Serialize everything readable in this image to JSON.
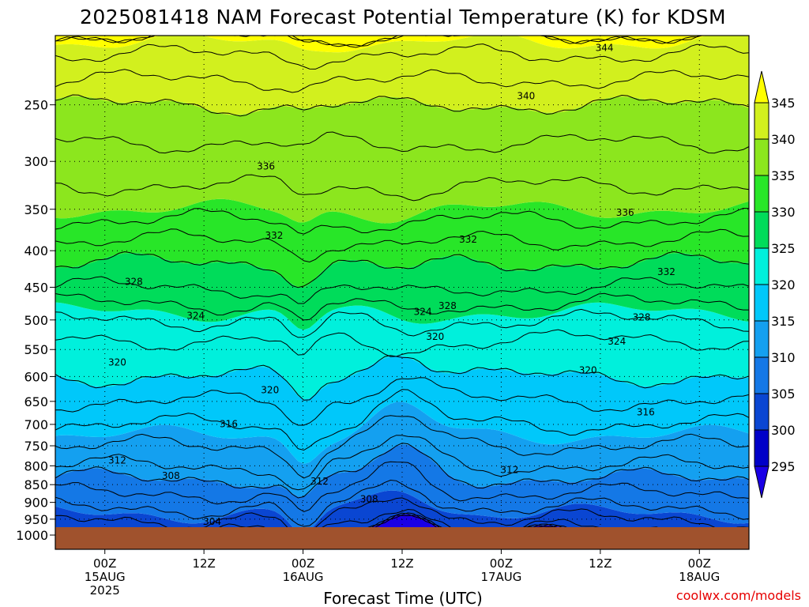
{
  "chart_data": {
    "type": "heatmap",
    "title": "2025081418 NAM Forecast Potential Temperature (K) for KDSM",
    "xlabel": "Forecast Time (UTC)",
    "ylabel": "",
    "credit": "coolwx.com/models",
    "y_scale": "log",
    "y_axis": {
      "ticks": [
        "250",
        "300",
        "350",
        "400",
        "450",
        "500",
        "550",
        "600",
        "650",
        "700",
        "750",
        "800",
        "850",
        "900",
        "950",
        "1000"
      ],
      "range": [
        200,
        1000
      ]
    },
    "x_axis": {
      "ticks": [
        {
          "hour": 6,
          "lines": [
            "00Z",
            "15AUG",
            "2025"
          ]
        },
        {
          "hour": 18,
          "lines": [
            "12Z"
          ]
        },
        {
          "hour": 30,
          "lines": [
            "00Z",
            "16AUG"
          ]
        },
        {
          "hour": 42,
          "lines": [
            "12Z"
          ]
        },
        {
          "hour": 54,
          "lines": [
            "00Z",
            "17AUG"
          ]
        },
        {
          "hour": 66,
          "lines": [
            "12Z"
          ]
        },
        {
          "hour": 78,
          "lines": [
            "00Z",
            "18AUG"
          ]
        }
      ],
      "range_hours": [
        0,
        84
      ]
    },
    "colorbar": {
      "levels": [
        "295",
        "300",
        "305",
        "310",
        "315",
        "320",
        "325",
        "330",
        "335",
        "340",
        "345"
      ],
      "colors": [
        "#1a00e6",
        "#0000c8",
        "#0a46d2",
        "#1478e6",
        "#14a0f0",
        "#00c8fa",
        "#00f0dc",
        "#00dc5a",
        "#28e628",
        "#8ce61e",
        "#d2f01e",
        "#ffff00"
      ]
    },
    "ground_color": "#a0522d",
    "contour_interval_K": 2,
    "contour_labels": [
      {
        "text": "344",
        "hour": 66.5,
        "p": 208
      },
      {
        "text": "340",
        "hour": 57,
        "p": 243
      },
      {
        "text": "336",
        "hour": 25.5,
        "p": 305
      },
      {
        "text": "336",
        "hour": 69,
        "p": 354
      },
      {
        "text": "332",
        "hour": 26.5,
        "p": 381
      },
      {
        "text": "332",
        "hour": 50,
        "p": 386
      },
      {
        "text": "332",
        "hour": 74,
        "p": 428
      },
      {
        "text": "328",
        "hour": 9.5,
        "p": 442
      },
      {
        "text": "328",
        "hour": 47.5,
        "p": 478
      },
      {
        "text": "328",
        "hour": 71,
        "p": 496
      },
      {
        "text": "324",
        "hour": 17,
        "p": 493
      },
      {
        "text": "324",
        "hour": 44.5,
        "p": 487
      },
      {
        "text": "324",
        "hour": 68,
        "p": 536
      },
      {
        "text": "320",
        "hour": 46,
        "p": 528
      },
      {
        "text": "320",
        "hour": 7.5,
        "p": 573
      },
      {
        "text": "320",
        "hour": 26,
        "p": 627
      },
      {
        "text": "320",
        "hour": 64.5,
        "p": 588
      },
      {
        "text": "316",
        "hour": 21,
        "p": 699
      },
      {
        "text": "316",
        "hour": 71.5,
        "p": 673
      },
      {
        "text": "312",
        "hour": 7.5,
        "p": 786
      },
      {
        "text": "312",
        "hour": 32,
        "p": 841
      },
      {
        "text": "312",
        "hour": 55,
        "p": 810
      },
      {
        "text": "308",
        "hour": 14,
        "p": 826
      },
      {
        "text": "308",
        "hour": 38,
        "p": 891
      },
      {
        "text": "304",
        "hour": 19,
        "p": 958
      }
    ],
    "levels_profile": [
      {
        "p": 200,
        "theta": 345.5
      },
      {
        "p": 250,
        "theta": 340
      },
      {
        "p": 300,
        "theta": 337
      },
      {
        "p": 350,
        "theta": 335
      },
      {
        "p": 400,
        "theta": 331
      },
      {
        "p": 450,
        "theta": 328
      },
      {
        "p": 500,
        "theta": 324
      },
      {
        "p": 550,
        "theta": 321
      },
      {
        "p": 600,
        "theta": 320
      },
      {
        "p": 650,
        "theta": 318
      },
      {
        "p": 700,
        "theta": 316
      },
      {
        "p": 750,
        "theta": 314
      },
      {
        "p": 800,
        "theta": 312
      },
      {
        "p": 850,
        "theta": 309
      },
      {
        "p": 900,
        "theta": 307
      },
      {
        "p": 950,
        "theta": 304
      }
    ]
  }
}
